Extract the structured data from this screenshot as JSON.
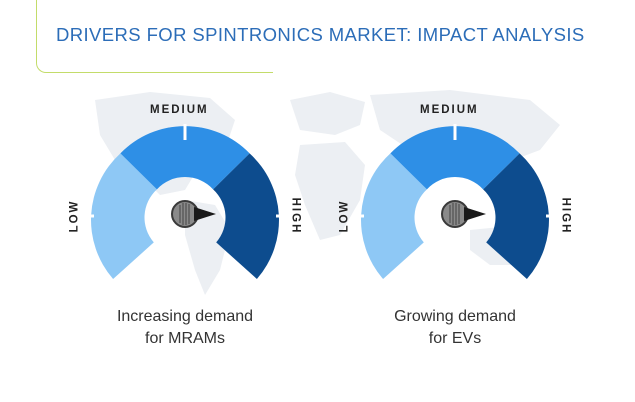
{
  "title": "DRIVERS FOR SPINTRONICS MARKET: IMPACT ANALYSIS",
  "scale": {
    "low": "LOW",
    "medium": "MEDIUM",
    "high": "HIGH"
  },
  "colors": {
    "title": "#2c6db8",
    "border": "#c3dc6a",
    "low": "#8ec8f5",
    "medium": "#2e8fe6",
    "high": "#0d4c8e",
    "map": "#eceff3"
  },
  "gauges": [
    {
      "caption_line1": "Increasing demand",
      "caption_line2": "for MRAMs",
      "level": "High"
    },
    {
      "caption_line1": "Growing demand",
      "caption_line2": "for EVs",
      "level": "High"
    }
  ]
}
